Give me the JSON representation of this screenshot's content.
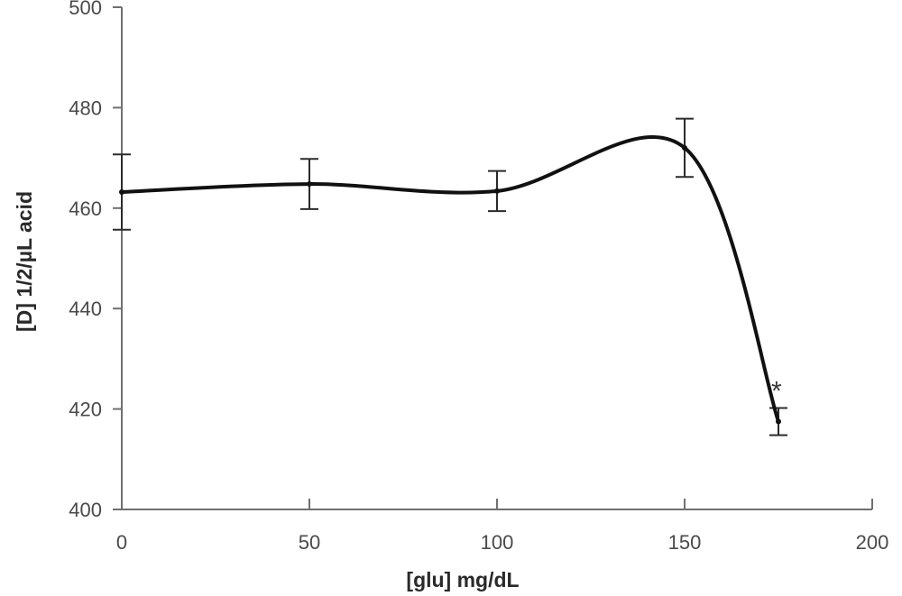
{
  "chart_data": {
    "type": "line",
    "xlabel": "[glu] mg/dL",
    "ylabel": "[D] 1/2/µL acid",
    "xlim": [
      0,
      200
    ],
    "ylim": [
      400,
      500
    ],
    "x_ticks": [
      0,
      50,
      100,
      150,
      200
    ],
    "y_ticks": [
      400,
      420,
      440,
      460,
      480,
      500
    ],
    "grid": false,
    "smooth": true,
    "series": [
      {
        "x": [
          0,
          50,
          100,
          150,
          175
        ],
        "y": [
          463.2,
          464.8,
          463.4,
          472,
          417.5
        ],
        "error": [
          7.5,
          5,
          4,
          5.8,
          2.7
        ]
      }
    ],
    "annotations": [
      {
        "text": "*",
        "x": 175,
        "y": 424
      }
    ]
  }
}
